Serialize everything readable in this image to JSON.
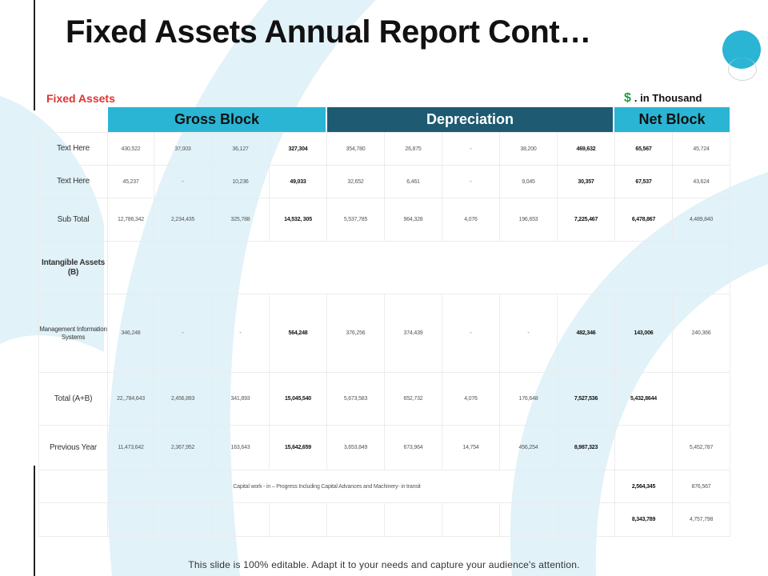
{
  "title": "Fixed Assets Annual Report Cont…",
  "section_label": "Fixed Assets",
  "unit": {
    "symbol": "$",
    "text": ". in Thousand"
  },
  "headers": {
    "gross": "Gross Block",
    "depreciation": "Depreciation",
    "net": "Net Block"
  },
  "rows": [
    {
      "label": "Text Here",
      "cells": [
        "430,522",
        "37,003",
        "36,127",
        "327,304",
        "354,780",
        "26,875",
        "-",
        "38,200",
        "469,632",
        "65,567",
        "45,724"
      ]
    },
    {
      "label": "Text Here",
      "cells": [
        "45,237",
        "-",
        "10,236",
        "49,033",
        "32,652",
        "6,461",
        "-",
        "9,045",
        "30,357",
        "67,537",
        "43,624"
      ]
    },
    {
      "label": "Sub Total",
      "cells": [
        "12,786,342",
        "2,234,435",
        "325,788",
        "14,532,   305",
        "5,537,785",
        "964,328",
        "4,076",
        "196,653",
        "7,225,467",
        "6,478,867",
        "4,489,840"
      ]
    },
    {
      "label": "Intangible Assets (B)"
    },
    {
      "label": "Management Information Systems",
      "cells": [
        "346,248",
        "-",
        "-",
        "564,248",
        "376,256",
        "374,439",
        "-",
        "-",
        "482,346",
        "143,006",
        "240,366"
      ]
    },
    {
      "label": "Total  (A+B)",
      "cells": [
        "22,,784,643",
        "2,456,893",
        "341,893",
        "15,045,540",
        "5,673,583",
        "652,732",
        "4,076",
        "176,648",
        "7,527,536",
        "5,432,8644",
        ""
      ]
    },
    {
      "label": "Previous Year",
      "cells": [
        "11,473,642",
        "2,367,952",
        "163,643",
        "15,642,659",
        "3,653,849",
        "673,964",
        "14,754",
        "456,254",
        "8,987,323",
        "",
        "5,452,787"
      ]
    }
  ],
  "cwip": {
    "note": "Capital work - in – Progress  Including  Capital  Advances  and  Machinery-  in transit",
    "cells": [
      "2,564,345",
      "876,567"
    ]
  },
  "final": {
    "cells": [
      "8,343,789",
      "4,757,798"
    ]
  },
  "footer": "This slide is 100% editable. Adapt it to your needs and capture your audience's attention."
}
